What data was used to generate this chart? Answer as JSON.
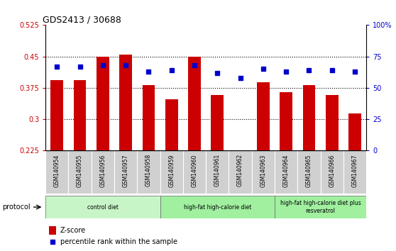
{
  "title": "GDS2413 / 30688",
  "samples": [
    "GSM140954",
    "GSM140955",
    "GSM140956",
    "GSM140957",
    "GSM140958",
    "GSM140959",
    "GSM140960",
    "GSM140961",
    "GSM140962",
    "GSM140963",
    "GSM140964",
    "GSM140965",
    "GSM140966",
    "GSM140967"
  ],
  "zscore": [
    0.393,
    0.393,
    0.45,
    0.455,
    0.382,
    0.348,
    0.45,
    0.358,
    0.226,
    0.388,
    0.365,
    0.382,
    0.358,
    0.313
  ],
  "percentile": [
    67,
    67,
    68,
    68,
    63,
    64,
    68,
    62,
    58,
    65,
    63,
    64,
    64,
    63
  ],
  "ylim_left": [
    0.225,
    0.525
  ],
  "ylim_right": [
    0,
    100
  ],
  "yticks_left": [
    0.225,
    0.3,
    0.375,
    0.45,
    0.525
  ],
  "yticks_right": [
    0,
    25,
    50,
    75,
    100
  ],
  "ytick_labels_left": [
    "0.225",
    "0.3",
    "0.375",
    "0.45",
    "0.525"
  ],
  "ytick_labels_right": [
    "0",
    "25",
    "50",
    "75",
    "100%"
  ],
  "bar_color": "#cc0000",
  "dot_color": "#0000cc",
  "protocol_groups": [
    {
      "label": "control diet",
      "start": 0,
      "end": 4,
      "color": "#c8f5c8"
    },
    {
      "label": "high-fat high-calorie diet",
      "start": 5,
      "end": 9,
      "color": "#a0f0a0"
    },
    {
      "label": "high-fat high-calorie diet plus\nresveratrol",
      "start": 10,
      "end": 13,
      "color": "#a0f0a0"
    }
  ],
  "protocol_label": "protocol",
  "legend_zscore": "Z-score",
  "legend_percentile": "percentile rank within the sample",
  "tick_color_left": "#cc0000",
  "tick_color_right": "#0000cc",
  "label_bg": "#d0d0d0",
  "grid_yticks": [
    0.3,
    0.375,
    0.45
  ]
}
